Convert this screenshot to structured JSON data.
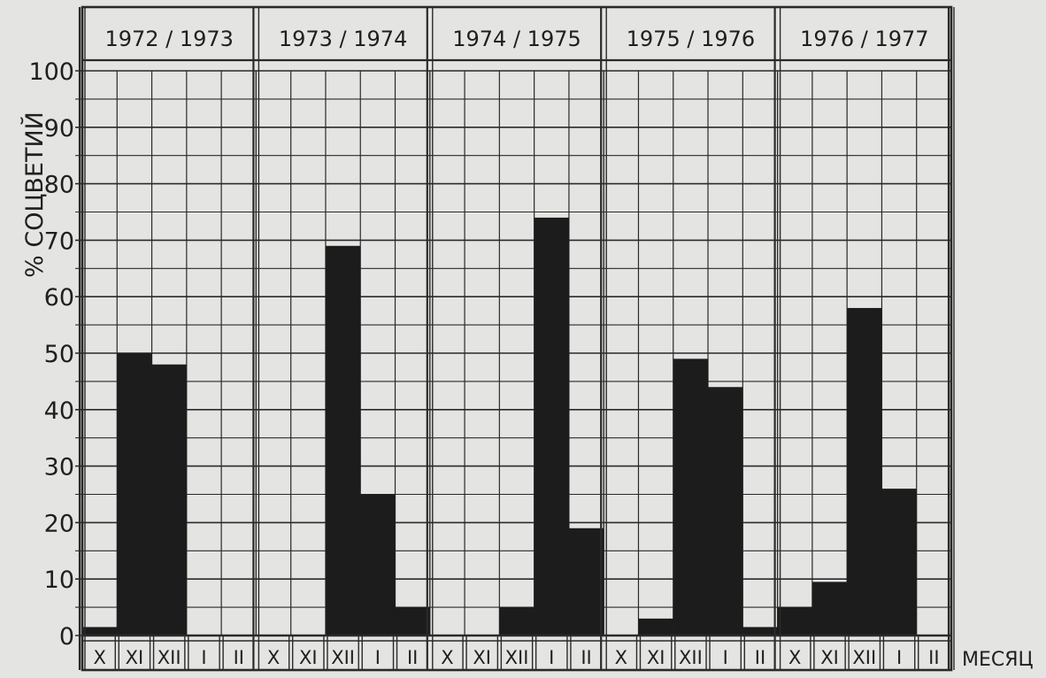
{
  "chart_data": {
    "type": "bar",
    "ylabel": "% СОЦВЕТИЙ",
    "xlabel": "МЕСЯЦ",
    "ylim": [
      0,
      100
    ],
    "y_ticks": [
      "0",
      "10",
      "20",
      "30",
      "40",
      "50",
      "60",
      "70",
      "80",
      "90",
      "100"
    ],
    "categories": [
      "X",
      "XI",
      "XII",
      "I",
      "II"
    ],
    "bar_color": "#1c1c1c",
    "background_color": "#e4e4e2",
    "grid": true,
    "series": [
      {
        "name": "1972 / 1973",
        "values": [
          1.5,
          50,
          48,
          0,
          0
        ]
      },
      {
        "name": "1973 / 1974",
        "values": [
          0,
          0,
          69,
          25,
          5
        ]
      },
      {
        "name": "1974 / 1975",
        "values": [
          0,
          0,
          5,
          74,
          19
        ]
      },
      {
        "name": "1975 / 1976",
        "values": [
          0,
          3,
          49,
          44,
          1.5
        ]
      },
      {
        "name": "1976 / 1977",
        "values": [
          5,
          9.5,
          58,
          26,
          0
        ]
      }
    ]
  }
}
